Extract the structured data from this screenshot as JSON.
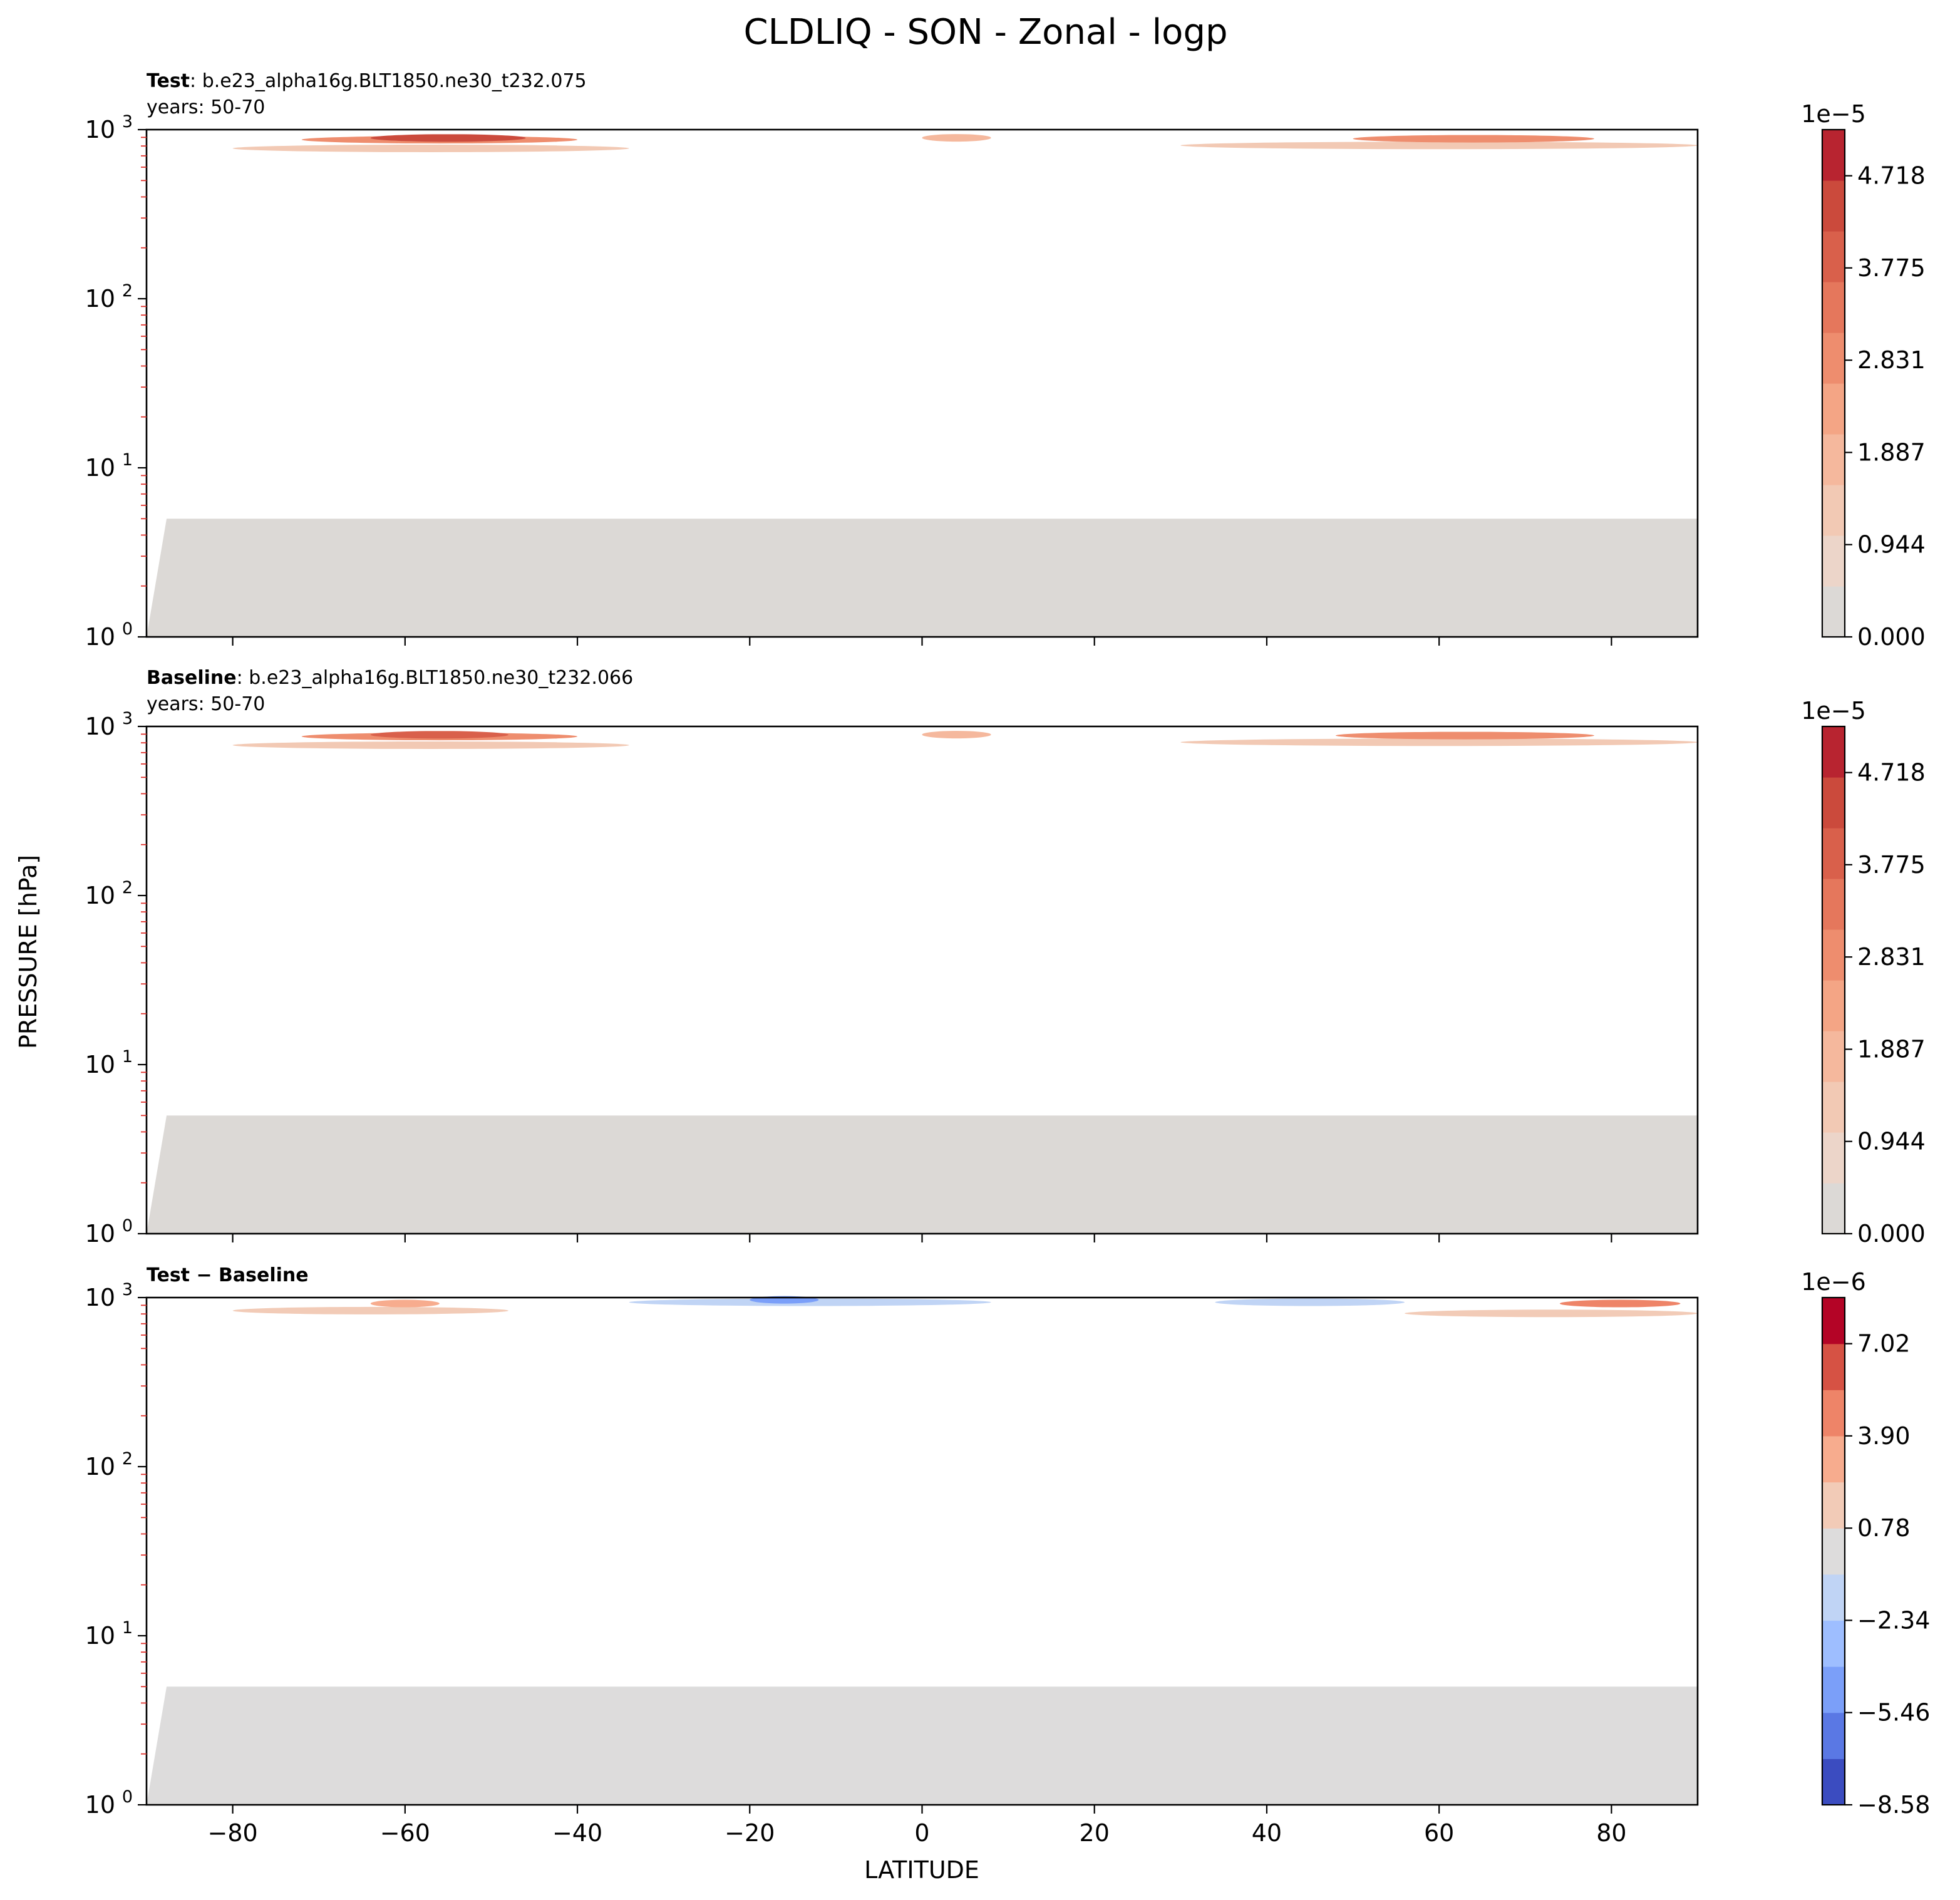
{
  "figure": {
    "title": "CLDLIQ - SON - Zonal - logp",
    "xlabel": "LATITUDE",
    "ylabel": "PRESSURE [hPa]"
  },
  "chart_data": [
    {
      "type": "heatmap",
      "label_bold": "Test",
      "label_sep": ": ",
      "case_name": "b.e23_alpha16g.BLT1850.ne30_t232.075",
      "years": "years: 50-70",
      "x_ticks": [
        "−80",
        "−60",
        "−40",
        "−20",
        "0",
        "20",
        "40",
        "60",
        "80"
      ],
      "x_tick_values": [
        -80,
        -60,
        -40,
        -20,
        0,
        20,
        40,
        60,
        80
      ],
      "xlim": [
        -90,
        90
      ],
      "y_scale": "log",
      "ylim": [
        1000,
        1
      ],
      "y_ticks": [
        {
          "base": "10",
          "exp": "0",
          "value": 1
        },
        {
          "base": "10",
          "exp": "1",
          "value": 10
        },
        {
          "base": "10",
          "exp": "2",
          "value": 100
        },
        {
          "base": "10",
          "exp": "3",
          "value": 1000
        }
      ],
      "data_top_pressure": 5,
      "colorbar": {
        "multiplier": "1e−5",
        "tick_labels": [
          "0.000",
          "0.944",
          "1.887",
          "2.831",
          "3.775",
          "4.718"
        ],
        "tick_values": [
          0,
          0.944,
          1.887,
          2.831,
          3.775,
          4.718
        ],
        "range": [
          0,
          5.19
        ],
        "colors": [
          "#dcd9d6",
          "#ecd5c9",
          "#f2c9b4",
          "#f5b89d",
          "#f4a585",
          "#ee8d6e",
          "#e5775c",
          "#d9604b",
          "#cb4a3c",
          "#b82430"
        ]
      },
      "hotspots": [
        {
          "lat_from": -80,
          "lat_to": -34,
          "p_from": 600,
          "p_to": 1000,
          "level": 0.25
        },
        {
          "lat_from": -72,
          "lat_to": -40,
          "p_from": 760,
          "p_to": 1000,
          "level": 0.55
        },
        {
          "lat_from": -64,
          "lat_to": -46,
          "p_from": 830,
          "p_to": 960,
          "level": 0.85
        },
        {
          "lat_from": 30,
          "lat_to": 90,
          "p_from": 650,
          "p_to": 1000,
          "level": 0.25
        },
        {
          "lat_from": 50,
          "lat_to": 78,
          "p_from": 780,
          "p_to": 1000,
          "level": 0.5
        },
        {
          "lat_from": 0,
          "lat_to": 8,
          "p_from": 800,
          "p_to": 1000,
          "level": 0.3
        }
      ]
    },
    {
      "type": "heatmap",
      "label_bold": "Baseline",
      "label_sep": ": ",
      "case_name": "b.e23_alpha16g.BLT1850.ne30_t232.066",
      "years": "years: 50-70",
      "x_ticks": [
        "−80",
        "−60",
        "−40",
        "−20",
        "0",
        "20",
        "40",
        "60",
        "80"
      ],
      "x_tick_values": [
        -80,
        -60,
        -40,
        -20,
        0,
        20,
        40,
        60,
        80
      ],
      "xlim": [
        -90,
        90
      ],
      "y_scale": "log",
      "ylim": [
        1000,
        1
      ],
      "y_ticks": [
        {
          "base": "10",
          "exp": "0",
          "value": 1
        },
        {
          "base": "10",
          "exp": "1",
          "value": 10
        },
        {
          "base": "10",
          "exp": "2",
          "value": 100
        },
        {
          "base": "10",
          "exp": "3",
          "value": 1000
        }
      ],
      "data_top_pressure": 5,
      "colorbar": {
        "multiplier": "1e−5",
        "tick_labels": [
          "0.000",
          "0.944",
          "1.887",
          "2.831",
          "3.775",
          "4.718"
        ],
        "tick_values": [
          0,
          0.944,
          1.887,
          2.831,
          3.775,
          4.718
        ],
        "range": [
          0,
          5.19
        ],
        "colors": [
          "#dcd9d6",
          "#ecd5c9",
          "#f2c9b4",
          "#f5b89d",
          "#f4a585",
          "#ee8d6e",
          "#e5775c",
          "#d9604b",
          "#cb4a3c",
          "#b82430"
        ]
      },
      "hotspots": [
        {
          "lat_from": -80,
          "lat_to": -34,
          "p_from": 600,
          "p_to": 1000,
          "level": 0.25
        },
        {
          "lat_from": -72,
          "lat_to": -40,
          "p_from": 760,
          "p_to": 1000,
          "level": 0.55
        },
        {
          "lat_from": -64,
          "lat_to": -48,
          "p_from": 830,
          "p_to": 960,
          "level": 0.8
        },
        {
          "lat_from": 30,
          "lat_to": 90,
          "p_from": 650,
          "p_to": 1000,
          "level": 0.25
        },
        {
          "lat_from": 48,
          "lat_to": 78,
          "p_from": 780,
          "p_to": 1000,
          "level": 0.5
        },
        {
          "lat_from": 0,
          "lat_to": 8,
          "p_from": 800,
          "p_to": 1000,
          "level": 0.3
        }
      ]
    },
    {
      "type": "heatmap",
      "label_bold": "Test − Baseline",
      "label_sep": "",
      "case_name": "",
      "years": "",
      "x_ticks": [
        "−80",
        "−60",
        "−40",
        "−20",
        "0",
        "20",
        "40",
        "60",
        "80"
      ],
      "x_tick_values": [
        -80,
        -60,
        -40,
        -20,
        0,
        20,
        40,
        60,
        80
      ],
      "xlim": [
        -90,
        90
      ],
      "y_scale": "log",
      "ylim": [
        1000,
        1
      ],
      "y_ticks": [
        {
          "base": "10",
          "exp": "0",
          "value": 1
        },
        {
          "base": "10",
          "exp": "1",
          "value": 10
        },
        {
          "base": "10",
          "exp": "2",
          "value": 100
        },
        {
          "base": "10",
          "exp": "3",
          "value": 1000
        }
      ],
      "data_top_pressure": 5,
      "colorbar": {
        "multiplier": "1e−6",
        "tick_labels": [
          "−8.58",
          "−5.46",
          "−2.34",
          "0.78",
          "3.90",
          "7.02"
        ],
        "tick_values": [
          -8.58,
          -5.46,
          -2.34,
          0.78,
          3.9,
          7.02
        ],
        "range": [
          -8.58,
          8.58
        ],
        "colors": [
          "#3b4cc0",
          "#5a78e4",
          "#7b9ff9",
          "#9ebeff",
          "#c0d4f5",
          "#dddcdc",
          "#f2cbb7",
          "#f7ac8e",
          "#ee8468",
          "#d65244",
          "#b40426"
        ]
      },
      "hotspots": [
        {
          "lat_from": -80,
          "lat_to": -48,
          "p_from": 700,
          "p_to": 1000,
          "level": 0.62
        },
        {
          "lat_from": -64,
          "lat_to": -56,
          "p_from": 850,
          "p_to": 1000,
          "level": 0.72
        },
        {
          "lat_from": -34,
          "lat_to": 8,
          "p_from": 880,
          "p_to": 1000,
          "level": 0.36
        },
        {
          "lat_from": -20,
          "lat_to": -12,
          "p_from": 940,
          "p_to": 1000,
          "level": 0.22
        },
        {
          "lat_from": 34,
          "lat_to": 56,
          "p_from": 880,
          "p_to": 1000,
          "level": 0.4
        },
        {
          "lat_from": 56,
          "lat_to": 90,
          "p_from": 650,
          "p_to": 1000,
          "level": 0.62
        },
        {
          "lat_from": 74,
          "lat_to": 88,
          "p_from": 850,
          "p_to": 1000,
          "level": 0.78
        }
      ]
    }
  ]
}
